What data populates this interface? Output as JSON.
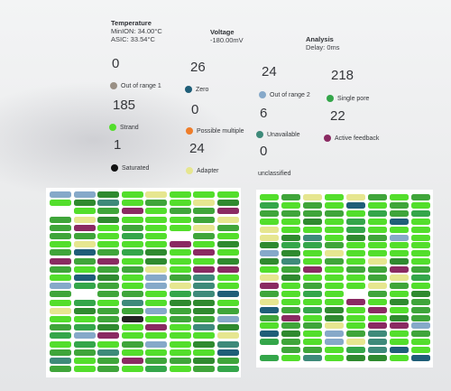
{
  "header": {
    "temperature": {
      "title": "Temperature",
      "minion": "MinION: 34.00°C",
      "asic": "ASIC: 33.54°C"
    },
    "voltage": {
      "title": "Voltage",
      "value": "-180.00mV"
    },
    "analysis": {
      "title": "Analysis",
      "delay": "Delay: 0ms"
    }
  },
  "stats": [
    {
      "count": "0",
      "label": "Out of range 1",
      "color": "#9a9085"
    },
    {
      "count": "26",
      "label": "Zero",
      "color": "#1f5e78"
    },
    {
      "count": "24",
      "label": "Out of range 2",
      "color": "#86a9c9"
    },
    {
      "count": "218",
      "label": "Single pore",
      "color": "#34a64a"
    },
    {
      "count": "185",
      "label": "Strand",
      "color": "#53de2c"
    },
    {
      "count": "0",
      "label": "Possible multiple",
      "color": "#ee7d2a"
    },
    {
      "count": "6",
      "label": "Unavailable",
      "color": "#3e8a7a"
    },
    {
      "count": "22",
      "label": "Active feedback",
      "color": "#8a2a62"
    },
    {
      "count": "1",
      "label": "Saturated",
      "color": "#111111"
    },
    {
      "count": "24",
      "label": "Adapter",
      "color": "#e6e690"
    },
    {
      "count": "0",
      "label": "unclassified",
      "color": "#cccccc"
    }
  ]
}
